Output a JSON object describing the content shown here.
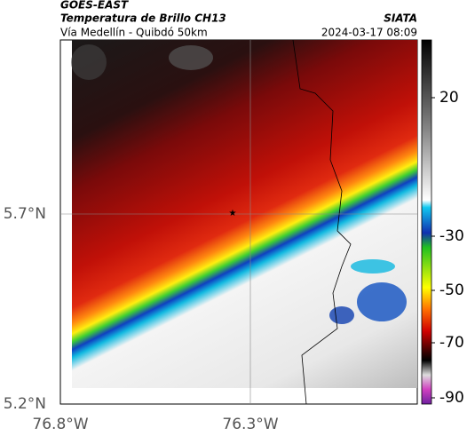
{
  "header": {
    "source": "GOES-EAST",
    "title": "Temperatura de Brillo CH13",
    "org": "SIATA",
    "subtitle": "Vía Medellín - Quibdó 50km",
    "timestamp": "2024-03-17 08:09"
  },
  "axes": {
    "lat_labels": [
      "5.7°N",
      "5.2°N"
    ],
    "lon_labels": [
      "76.8°W",
      "76.3°W"
    ]
  },
  "colorbar": {
    "ticks": [
      "20",
      "-30",
      "-50",
      "-70",
      "-90"
    ]
  }
}
